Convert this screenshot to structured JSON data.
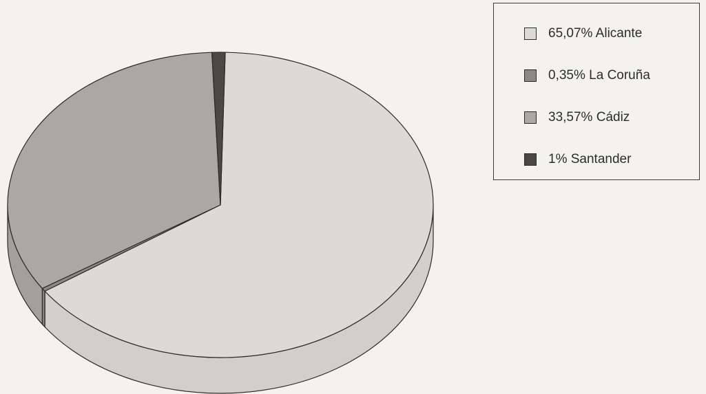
{
  "chart_data": {
    "type": "pie",
    "title": "",
    "slices": [
      {
        "label": "Alicante",
        "value": 65.07,
        "legend_text": "65,07% Alicante",
        "color": "#dcdad6"
      },
      {
        "label": "La Coruña",
        "value": 0.35,
        "legend_text": "0,35% La Coruña",
        "color": "#8c8984"
      },
      {
        "label": "Cádiz",
        "value": 33.57,
        "legend_text": "33,57% Cádiz",
        "color": "#aba8a3"
      },
      {
        "label": "Santander",
        "value": 1,
        "legend_text": "1% Santander",
        "color": "#4c4744"
      }
    ],
    "legend_placement": "top-right",
    "style": "3d"
  },
  "legend": {
    "items": [
      {
        "text": "65,07% Alicante",
        "color": "#dcdad6"
      },
      {
        "text": "0,35% La Coruña",
        "color": "#8c8984"
      },
      {
        "text": "33,57% Cádiz",
        "color": "#aba8a3"
      },
      {
        "text": "1% Santander",
        "color": "#4c4744"
      }
    ]
  }
}
